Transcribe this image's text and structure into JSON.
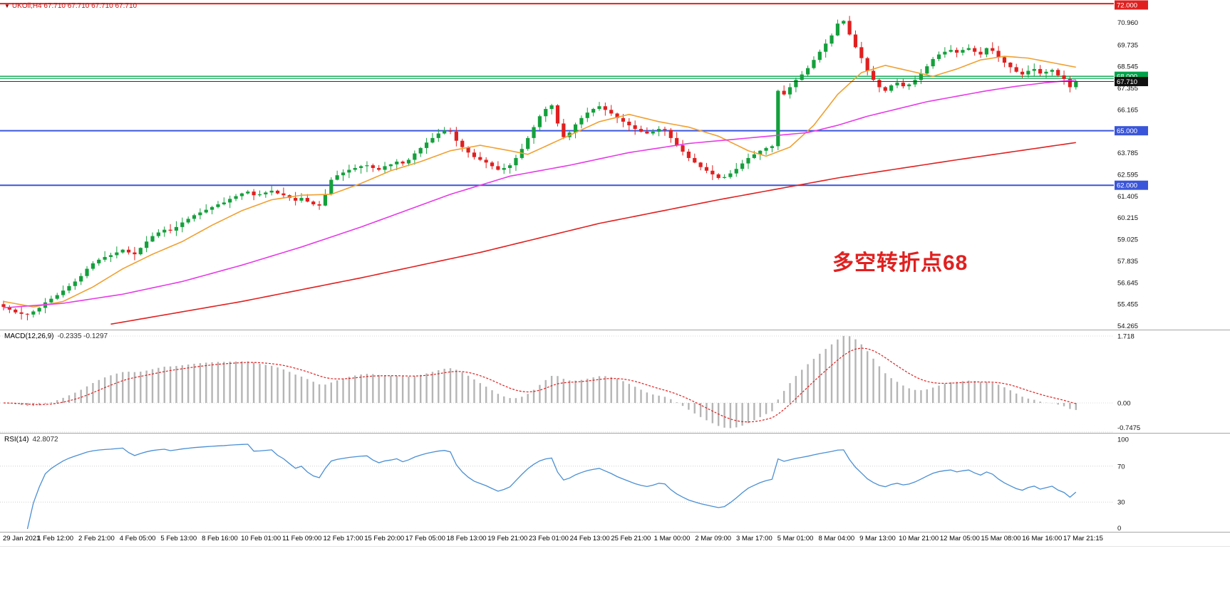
{
  "header": {
    "marker_icon": "▼",
    "symbol_period": "UKOil,H4",
    "ohlc": "67.710 67.710 67.710 67.710"
  },
  "chart_data": {
    "type": "candlestick",
    "symbol": "UKOil",
    "timeframe": "H4",
    "title": "UKOil,H4 67.710 67.710 67.710 67.710",
    "price_axis": {
      "min": 54.05,
      "max": 72.2,
      "tick_labels": [
        "70.960",
        "69.735",
        "68.545",
        "67.355",
        "66.165",
        "63.785",
        "62.595",
        "61.405",
        "60.215",
        "59.025",
        "57.835",
        "56.645",
        "55.455",
        "54.265"
      ]
    },
    "x_labels": [
      "29 Jan 2021",
      "1 Feb 12:00",
      "2 Feb 21:00",
      "4 Feb 05:00",
      "5 Feb 13:00",
      "8 Feb 16:00",
      "10 Feb 01:00",
      "11 Feb 09:00",
      "12 Feb 17:00",
      "15 Feb 20:00",
      "17 Feb 05:00",
      "18 Feb 13:00",
      "19 Feb 21:00",
      "23 Feb 01:00",
      "24 Feb 13:00",
      "25 Feb 21:00",
      "1 Mar 00:00",
      "2 Mar 09:00",
      "3 Mar 17:00",
      "5 Mar 01:00",
      "8 Mar 04:00",
      "9 Mar 13:00",
      "10 Mar 21:00",
      "12 Mar 05:00",
      "15 Mar 08:00",
      "16 Mar 16:00",
      "17 Mar 21:15"
    ],
    "closes": [
      55.3,
      55.15,
      55.0,
      54.92,
      54.88,
      55.05,
      55.25,
      55.55,
      55.75,
      55.95,
      56.2,
      56.45,
      56.7,
      57.0,
      57.4,
      57.7,
      57.9,
      58.05,
      58.15,
      58.3,
      58.45,
      58.3,
      58.2,
      58.55,
      58.9,
      59.2,
      59.4,
      59.55,
      59.5,
      59.7,
      59.95,
      60.15,
      60.35,
      60.5,
      60.65,
      60.8,
      60.95,
      61.05,
      61.25,
      61.4,
      61.55,
      61.65,
      61.45,
      61.5,
      61.6,
      61.7,
      61.55,
      61.45,
      61.3,
      61.15,
      61.3,
      61.1,
      60.95,
      60.88,
      61.5,
      62.3,
      62.55,
      62.7,
      62.85,
      62.95,
      63.05,
      63.1,
      62.95,
      62.85,
      63.05,
      63.15,
      63.3,
      63.2,
      63.4,
      63.75,
      64.05,
      64.35,
      64.6,
      64.85,
      65.0,
      64.95,
      64.45,
      64.1,
      63.8,
      63.55,
      63.4,
      63.25,
      63.05,
      62.85,
      62.95,
      63.1,
      63.5,
      64.0,
      64.6,
      65.2,
      65.8,
      66.2,
      66.4,
      65.4,
      64.65,
      64.9,
      65.35,
      65.7,
      66.0,
      66.2,
      66.35,
      66.15,
      65.95,
      65.7,
      65.5,
      65.3,
      65.1,
      64.95,
      64.85,
      64.95,
      65.1,
      65.05,
      64.6,
      64.2,
      63.85,
      63.5,
      63.25,
      63.0,
      62.8,
      62.6,
      62.4,
      62.45,
      62.65,
      62.9,
      63.2,
      63.5,
      63.7,
      63.9,
      64.05,
      64.15,
      67.2,
      67.0,
      67.4,
      67.8,
      68.1,
      68.45,
      68.9,
      69.35,
      69.8,
      70.25,
      70.9,
      71.05,
      70.3,
      69.6,
      69.0,
      68.3,
      67.8,
      67.4,
      67.2,
      67.5,
      67.65,
      67.45,
      67.55,
      67.8,
      68.15,
      68.55,
      68.95,
      69.2,
      69.35,
      69.45,
      69.3,
      69.45,
      69.55,
      69.35,
      69.2,
      69.55,
      69.4,
      69.05,
      68.75,
      68.5,
      68.25,
      68.1,
      68.3,
      68.4,
      68.15,
      68.25,
      68.35,
      68.05,
      67.85,
      67.4,
      67.71
    ],
    "current_price": {
      "value": 67.71,
      "label": "67.710",
      "badge_color": "#111111"
    },
    "hlines": [
      {
        "value": 72.0,
        "label": "72.000",
        "color": "#e02020",
        "width": 2,
        "badge": true
      },
      {
        "value": 68.0,
        "label": "68.000",
        "color": "#00a24a",
        "width": 1.4,
        "badge": true
      },
      {
        "value": 67.88,
        "label": "",
        "color": "#00a24a",
        "width": 1.2,
        "badge": false
      },
      {
        "value": 65.0,
        "label": "65.000",
        "color": "#3a55d9",
        "width": 2,
        "badge": true
      },
      {
        "value": 62.0,
        "label": "62.000",
        "color": "#3a55d9",
        "width": 2,
        "badge": true
      }
    ],
    "moving_averages": [
      {
        "name": "ma-fast",
        "color": "#f0a030",
        "points": [
          [
            0,
            55.6
          ],
          [
            5,
            55.3
          ],
          [
            10,
            55.6
          ],
          [
            15,
            56.4
          ],
          [
            20,
            57.4
          ],
          [
            25,
            58.2
          ],
          [
            30,
            58.9
          ],
          [
            35,
            59.8
          ],
          [
            40,
            60.6
          ],
          [
            45,
            61.2
          ],
          [
            50,
            61.45
          ],
          [
            55,
            61.5
          ],
          [
            60,
            62.1
          ],
          [
            65,
            62.8
          ],
          [
            70,
            63.3
          ],
          [
            75,
            63.9
          ],
          [
            80,
            64.2
          ],
          [
            85,
            63.9
          ],
          [
            88,
            63.7
          ],
          [
            92,
            64.3
          ],
          [
            96,
            64.9
          ],
          [
            100,
            65.5
          ],
          [
            105,
            65.9
          ],
          [
            110,
            65.5
          ],
          [
            115,
            65.2
          ],
          [
            120,
            64.7
          ],
          [
            125,
            63.9
          ],
          [
            128,
            63.6
          ],
          [
            132,
            64.1
          ],
          [
            136,
            65.3
          ],
          [
            140,
            67.0
          ],
          [
            144,
            68.2
          ],
          [
            148,
            68.6
          ],
          [
            152,
            68.3
          ],
          [
            156,
            68.0
          ],
          [
            160,
            68.4
          ],
          [
            164,
            68.9
          ],
          [
            168,
            69.1
          ],
          [
            172,
            69.0
          ],
          [
            176,
            68.75
          ],
          [
            180,
            68.5
          ]
        ]
      },
      {
        "name": "ma-medium",
        "color": "#e83ae8",
        "points": [
          [
            0,
            55.25
          ],
          [
            10,
            55.5
          ],
          [
            20,
            56.0
          ],
          [
            30,
            56.7
          ],
          [
            40,
            57.6
          ],
          [
            50,
            58.6
          ],
          [
            60,
            59.7
          ],
          [
            70,
            60.9
          ],
          [
            75,
            61.5
          ],
          [
            85,
            62.5
          ],
          [
            95,
            63.1
          ],
          [
            105,
            63.8
          ],
          [
            115,
            64.3
          ],
          [
            125,
            64.6
          ],
          [
            130,
            64.75
          ],
          [
            135,
            64.9
          ],
          [
            140,
            65.3
          ],
          [
            145,
            65.8
          ],
          [
            150,
            66.2
          ],
          [
            155,
            66.6
          ],
          [
            160,
            66.9
          ],
          [
            165,
            67.2
          ],
          [
            170,
            67.45
          ],
          [
            175,
            67.65
          ],
          [
            180,
            67.8
          ]
        ]
      },
      {
        "name": "ma-slow",
        "color": "#e02020",
        "points": [
          [
            18,
            54.35
          ],
          [
            40,
            55.6
          ],
          [
            60,
            56.9
          ],
          [
            80,
            58.3
          ],
          [
            100,
            59.9
          ],
          [
            120,
            61.2
          ],
          [
            140,
            62.4
          ],
          [
            160,
            63.4
          ],
          [
            180,
            64.35
          ]
        ]
      }
    ],
    "candle_colors": {
      "up": "#14a03c",
      "down": "#e02020"
    },
    "annotation": {
      "text": "多空转折点68",
      "color": "#e02020"
    },
    "macd": {
      "label": "MACD(12,26,9)",
      "values_text": "-0.2335 -0.1297",
      "fast": 12,
      "slow": 26,
      "signal": 9,
      "axis_labels": [
        {
          "text": "1.718",
          "value": 1.718
        },
        {
          "text": "0.00",
          "value": 0
        },
        {
          "text": "-0.7475",
          "value": -0.7475
        }
      ],
      "histogram_color": "#b5b5b5",
      "signal_color": "#e02020"
    },
    "rsi": {
      "label": "RSI(14)",
      "value_text": "42.8072",
      "period": 14,
      "axis_labels": [
        {
          "text": "100",
          "value": 100
        },
        {
          "text": "70",
          "value": 70
        },
        {
          "text": "30",
          "value": 30
        },
        {
          "text": "0",
          "value": 0
        }
      ],
      "levels": [
        70,
        30
      ],
      "line_color": "#4a8fd4"
    }
  }
}
